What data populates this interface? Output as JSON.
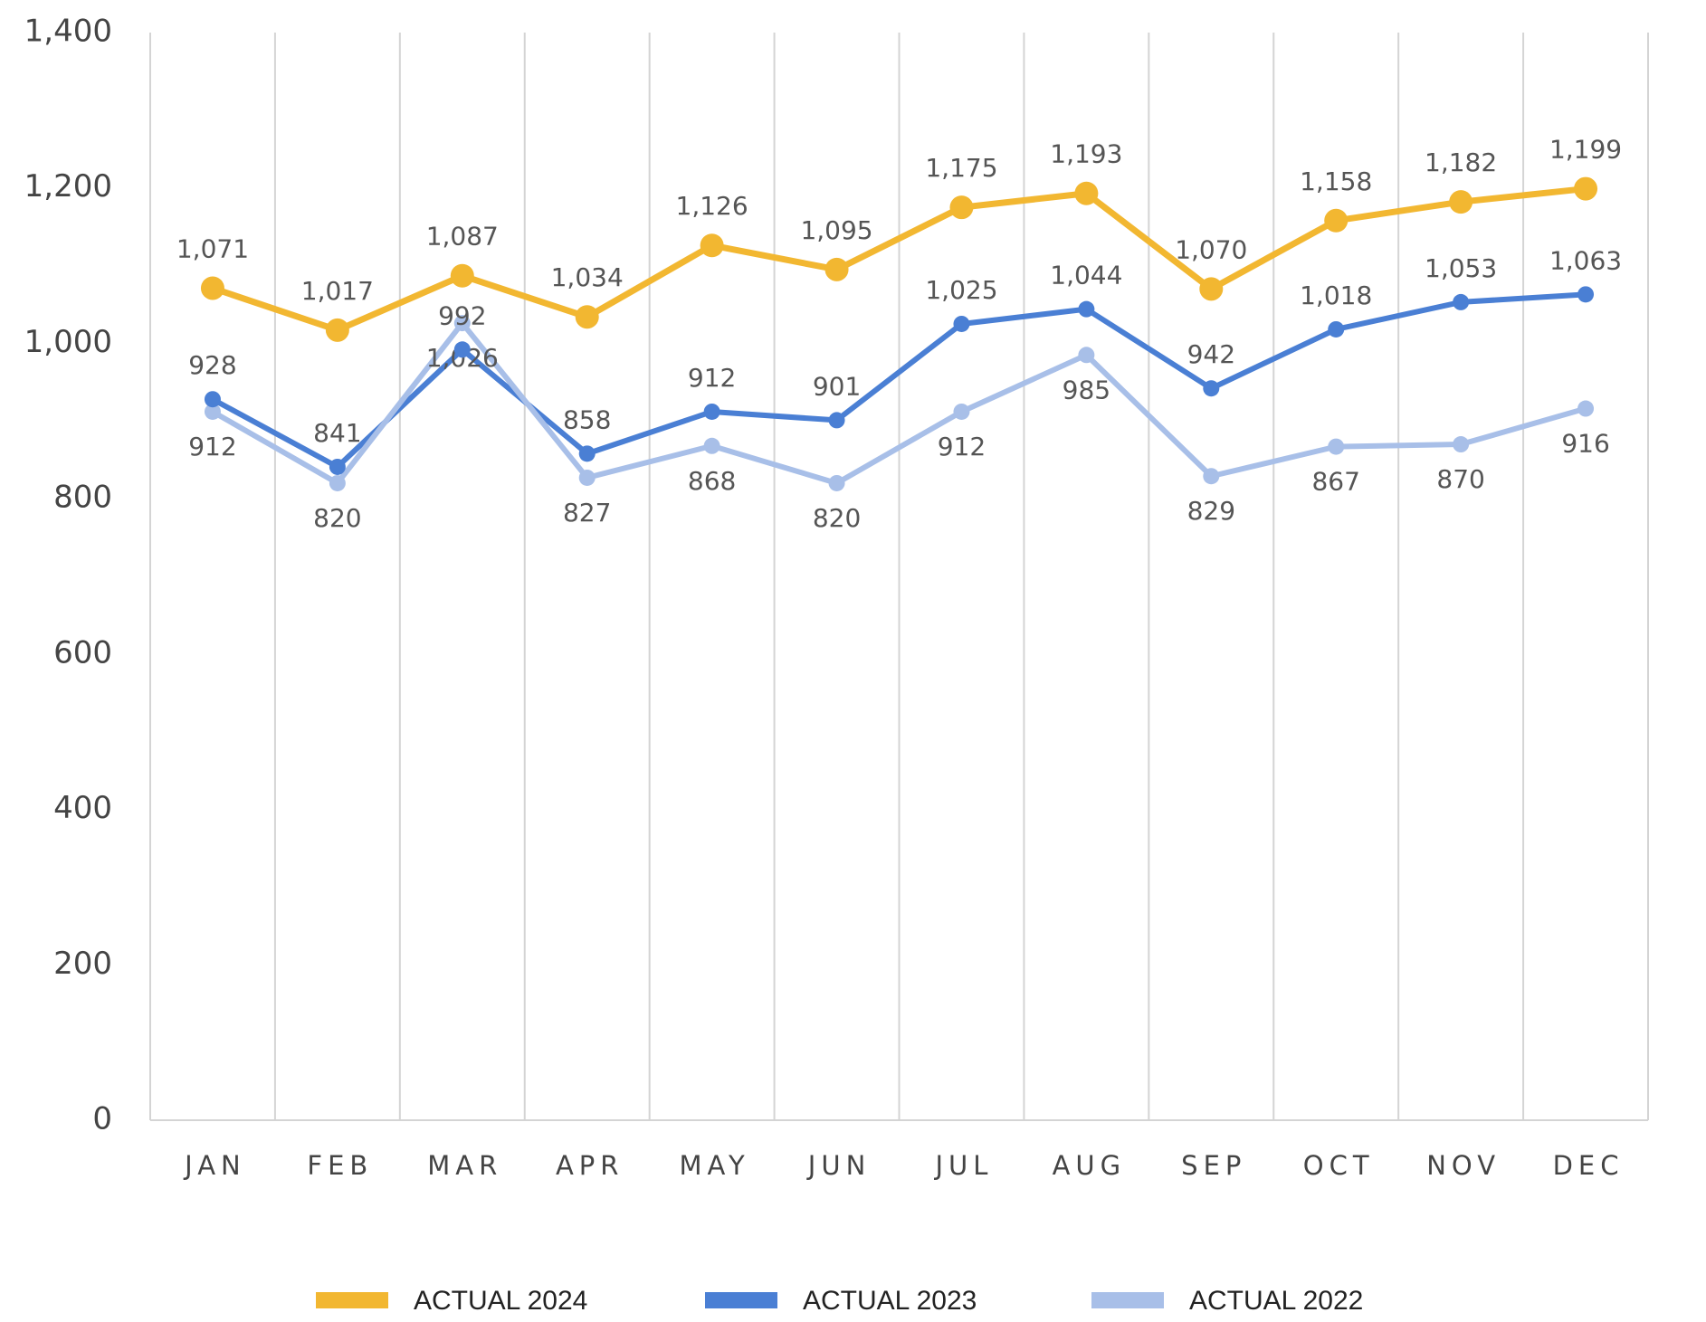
{
  "chart_data": {
    "type": "line",
    "categories": [
      "JAN",
      "FEB",
      "MAR",
      "APR",
      "MAY",
      "JUN",
      "JUL",
      "AUG",
      "SEP",
      "OCT",
      "NOV",
      "DEC"
    ],
    "series": [
      {
        "name": "ACTUAL 2024",
        "color": "#f2b731",
        "values": [
          1071,
          1017,
          1087,
          1034,
          1126,
          1095,
          1175,
          1193,
          1070,
          1158,
          1182,
          1199
        ],
        "value_labels": [
          "1,071",
          "1,017",
          "1,087",
          "1,034",
          "1,126",
          "1,095",
          "1,175",
          "1,193",
          "1,070",
          "1,158",
          "1,182",
          "1,199"
        ]
      },
      {
        "name": "ACTUAL 2023",
        "color": "#4a7fd4",
        "values": [
          928,
          841,
          992,
          858,
          912,
          901,
          1025,
          1044,
          942,
          1018,
          1053,
          1063
        ],
        "value_labels": [
          "928",
          "841",
          "992",
          "858",
          "912",
          "901",
          "1,025",
          "1,044",
          "942",
          "1,018",
          "1,053",
          "1,063"
        ]
      },
      {
        "name": "ACTUAL 2022",
        "color": "#a8bfe8",
        "values": [
          912,
          820,
          1026,
          827,
          868,
          820,
          912,
          985,
          829,
          867,
          870,
          916
        ],
        "value_labels": [
          "912",
          "820",
          "1,026",
          "827",
          "868",
          "820",
          "912",
          "985",
          "829",
          "867",
          "870",
          "916"
        ]
      }
    ],
    "ylim": [
      0,
      1400
    ],
    "yticks": [
      0,
      200,
      400,
      600,
      800,
      {
        "value": 1000,
        "label": "1,000"
      },
      {
        "value": 1200,
        "label": "1,200"
      },
      {
        "value": 1400,
        "label": "1,400"
      }
    ],
    "grid": true,
    "legend": "bottom"
  }
}
